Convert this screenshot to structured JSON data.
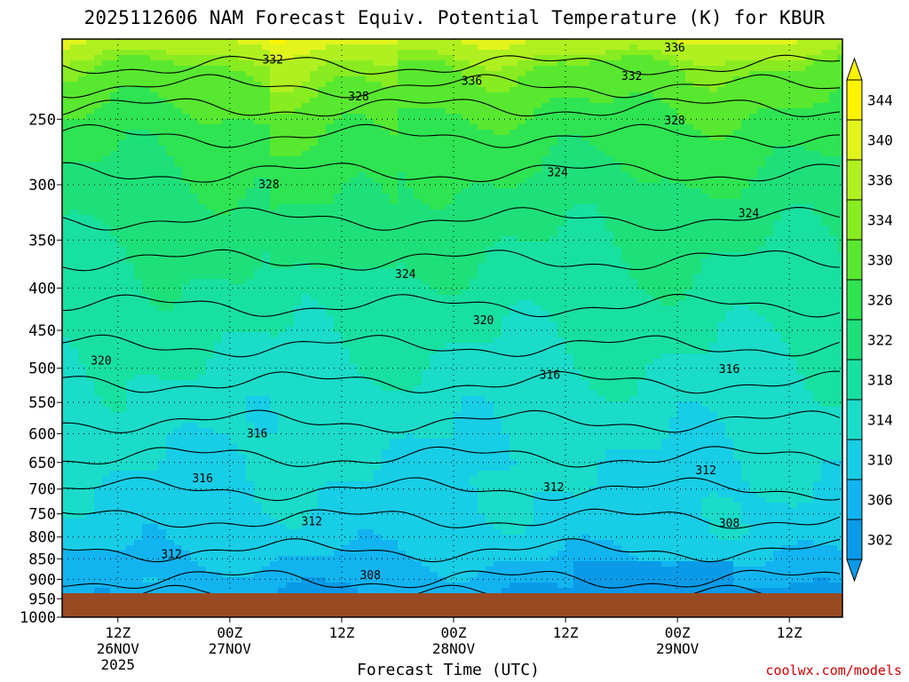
{
  "chart_data": {
    "type": "heatmap",
    "title": "2025112606 NAM Forecast Equiv. Potential Temperature (K) for KBUR",
    "xlabel": "Forecast Time (UTC)",
    "ylabel": "",
    "y_axis": {
      "scale": "log-pressure",
      "reversed": true,
      "ylim": [
        1000,
        200
      ],
      "tick_labels": [
        "250",
        "300",
        "350",
        "400",
        "450",
        "500",
        "550",
        "600",
        "650",
        "700",
        "750",
        "800",
        "850",
        "900",
        "950",
        "1000"
      ]
    },
    "x_axis": {
      "tick_labels": [
        {
          "time": "12Z",
          "date": "26NOV",
          "year": "2025"
        },
        {
          "time": "00Z",
          "date": "27NOV",
          "year": ""
        },
        {
          "time": "12Z",
          "date": "",
          "year": ""
        },
        {
          "time": "00Z",
          "date": "28NOV",
          "year": ""
        },
        {
          "time": "12Z",
          "date": "",
          "year": ""
        },
        {
          "time": "00Z",
          "date": "29NOV",
          "year": ""
        },
        {
          "time": "12Z",
          "date": "",
          "year": ""
        }
      ]
    },
    "grid": true,
    "colorbar": {
      "position": "right",
      "unit": "K",
      "levels": [
        302,
        306,
        310,
        314,
        318,
        322,
        326,
        330,
        334,
        336,
        340,
        344
      ],
      "colors": [
        "#0a9ae8",
        "#12b4f0",
        "#18cde6",
        "#1adcc8",
        "#18e0a0",
        "#1ee07a",
        "#2ee452",
        "#58e830",
        "#88ec20",
        "#b0f020",
        "#e2f41c",
        "#fff400"
      ]
    },
    "contour_labels": [
      {
        "value": "336",
        "t": 0.785,
        "p": 205
      },
      {
        "value": "332",
        "t": 0.27,
        "p": 212
      },
      {
        "value": "336",
        "t": 0.525,
        "p": 225
      },
      {
        "value": "332",
        "t": 0.73,
        "p": 222
      },
      {
        "value": "328",
        "t": 0.38,
        "p": 235
      },
      {
        "value": "328",
        "t": 0.785,
        "p": 251
      },
      {
        "value": "328",
        "t": 0.265,
        "p": 300
      },
      {
        "value": "324",
        "t": 0.635,
        "p": 290
      },
      {
        "value": "324",
        "t": 0.88,
        "p": 325
      },
      {
        "value": "324",
        "t": 0.44,
        "p": 385
      },
      {
        "value": "320",
        "t": 0.54,
        "p": 438
      },
      {
        "value": "320",
        "t": 0.05,
        "p": 490
      },
      {
        "value": "316",
        "t": 0.625,
        "p": 510
      },
      {
        "value": "316",
        "t": 0.855,
        "p": 502
      },
      {
        "value": "316",
        "t": 0.25,
        "p": 600
      },
      {
        "value": "316",
        "t": 0.18,
        "p": 680
      },
      {
        "value": "312",
        "t": 0.825,
        "p": 665
      },
      {
        "value": "312",
        "t": 0.63,
        "p": 697
      },
      {
        "value": "312",
        "t": 0.32,
        "p": 767
      },
      {
        "value": "312",
        "t": 0.14,
        "p": 840
      },
      {
        "value": "308",
        "t": 0.855,
        "p": 770
      },
      {
        "value": "308",
        "t": 0.395,
        "p": 890
      }
    ],
    "ground": {
      "color": "#9a4a22"
    }
  },
  "credit": "coolwx.com/models"
}
